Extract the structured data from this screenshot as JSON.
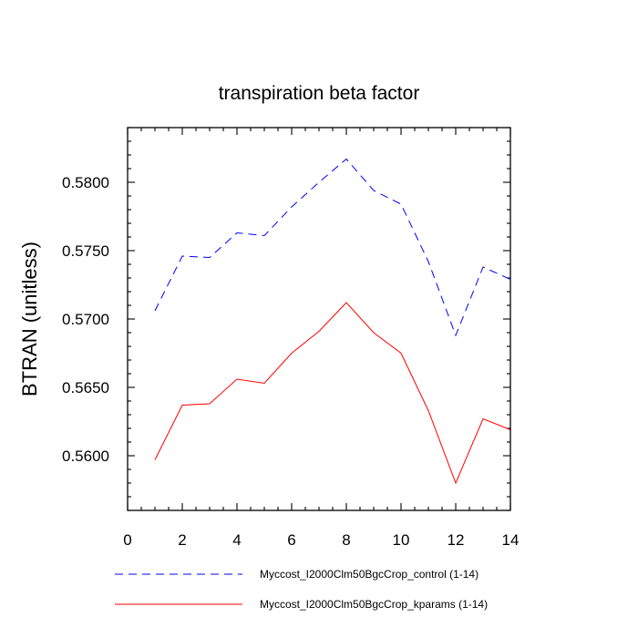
{
  "chart_data": {
    "type": "line",
    "title": "transpiration beta factor",
    "xlabel": "",
    "ylabel": "BTRAN  (unitless)",
    "xlim": [
      0,
      14
    ],
    "ylim": [
      0.556,
      0.584
    ],
    "x_ticks": [
      0,
      2,
      4,
      6,
      8,
      10,
      12,
      14
    ],
    "y_ticks": [
      0.56,
      0.565,
      0.57,
      0.575,
      0.58
    ],
    "x_tick_labels": [
      "0",
      "2",
      "4",
      "6",
      "8",
      "10",
      "12",
      "14"
    ],
    "y_tick_labels": [
      "0.5600",
      "0.5650",
      "0.5700",
      "0.5750",
      "0.5800"
    ],
    "x_minor_step": 0.5,
    "y_minor_step": 0.001,
    "grid": false,
    "legend_position": "bottom",
    "x": [
      1,
      2,
      3,
      4,
      5,
      6,
      7,
      8,
      9,
      10,
      11,
      12,
      13,
      14
    ],
    "series": [
      {
        "name": "Myccost_I2000Clm50BgcCrop_control (1-14)",
        "color": "#0000ff",
        "dash": "dashed",
        "values": [
          0.5706,
          0.5746,
          0.5745,
          0.5763,
          0.5761,
          0.5782,
          0.58,
          0.5817,
          0.5794,
          0.5784,
          0.5742,
          0.5688,
          0.5738,
          0.5729
        ]
      },
      {
        "name": "Myccost_I2000Clm50BgcCrop_kparams (1-14)",
        "color": "#ff0000",
        "dash": "solid",
        "values": [
          0.5597,
          0.5637,
          0.5638,
          0.5656,
          0.5653,
          0.5675,
          0.5691,
          0.5712,
          0.569,
          0.5675,
          0.5633,
          0.558,
          0.5627,
          0.5619
        ]
      }
    ]
  }
}
